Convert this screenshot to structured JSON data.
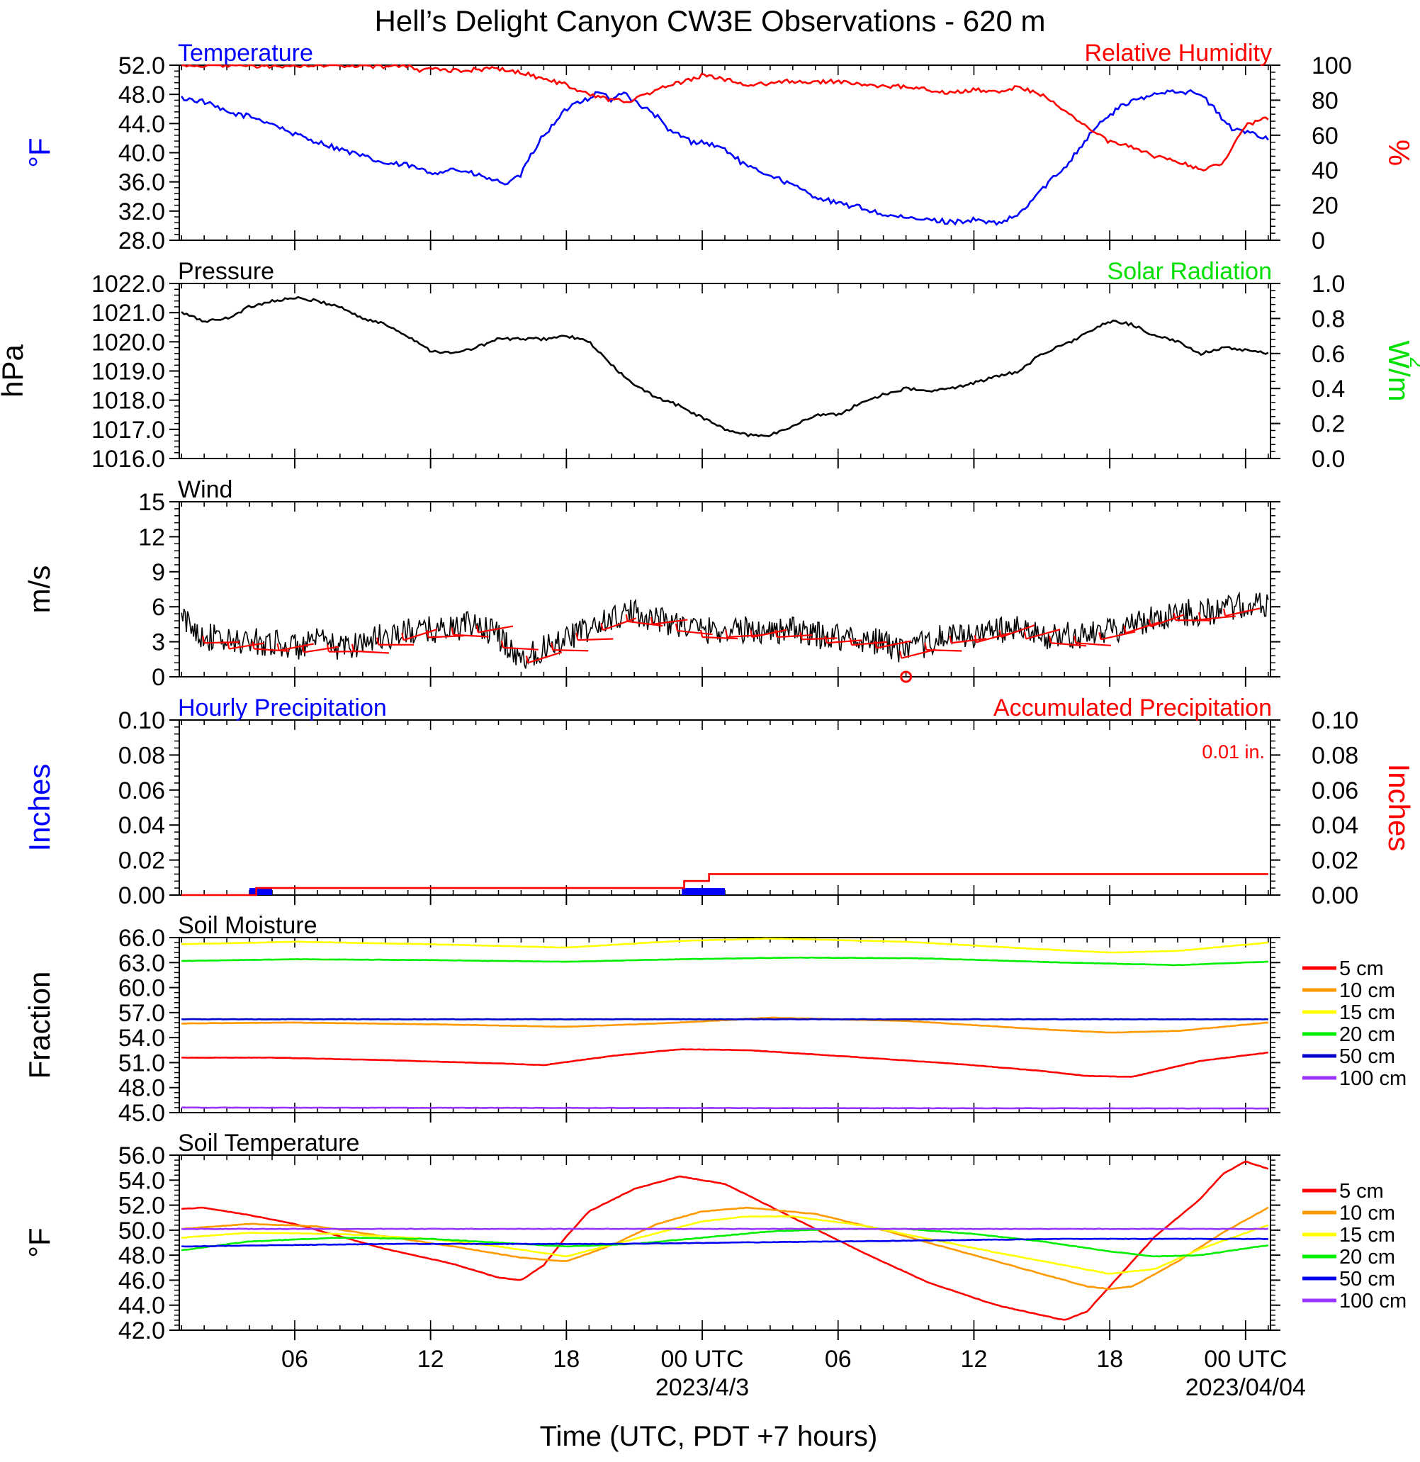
{
  "figure": {
    "title": "Hell’s Delight Canyon CW3E Observations - 620 m",
    "xlabel": "Time (UTC, PDT +7 hours)",
    "x_ticks": [
      "06",
      "12",
      "18",
      "00 UTC",
      "06",
      "12",
      "18",
      "00 UTC"
    ],
    "x_tick_hours": [
      6,
      12,
      18,
      24,
      30,
      36,
      42,
      48
    ],
    "x_dates": [
      "2023/4/3",
      "2023/04/04"
    ],
    "x_date_hours": [
      24,
      48
    ],
    "xlim": [
      0.9,
      49.1
    ],
    "colors": {
      "blue": "#0000ff",
      "red": "#ff0000",
      "green": "#00e000",
      "black": "#000000",
      "orange": "#ff9900",
      "yellow": "#ffff00",
      "purple": "#9933ff"
    }
  },
  "chart_data": [
    {
      "id": "temp_rh",
      "type": "line",
      "title_left": "Temperature",
      "title_right": "Relative Humidity",
      "ylabel_left": "°F",
      "ylabel_right": "%",
      "ylim_left": [
        28,
        52
      ],
      "ylim_right": [
        0,
        100
      ],
      "yticks_left": [
        "28.0",
        "32.0",
        "36.0",
        "40.0",
        "44.0",
        "48.0",
        "52.0"
      ],
      "yticks_right": [
        "0",
        "20",
        "40",
        "60",
        "80",
        "100"
      ],
      "series": [
        {
          "axis": "left",
          "color": "#0000ff",
          "x": [
            1,
            2,
            3,
            4,
            5,
            6,
            7,
            8,
            9,
            10,
            11,
            12,
            13,
            14,
            15,
            15.5,
            16,
            16.5,
            17,
            17.5,
            18,
            18.5,
            19,
            19.5,
            20,
            20.5,
            21,
            22,
            22.5,
            23,
            23.5,
            24,
            25,
            26,
            27,
            28,
            29,
            30,
            31,
            32,
            33,
            34,
            35,
            36,
            37,
            38,
            39,
            40,
            40.5,
            41,
            41.5,
            42,
            42.5,
            43,
            43.5,
            44,
            44.5,
            45,
            45.5,
            46,
            46.5,
            47,
            47.5,
            48,
            49
          ],
          "y": [
            47.5,
            47,
            45.5,
            45,
            44,
            42.5,
            41.5,
            40.5,
            39.5,
            38.5,
            38.3,
            37.2,
            37.8,
            37,
            36,
            35.8,
            37,
            40,
            42.5,
            44,
            46,
            47,
            47.5,
            48.5,
            47,
            48.5,
            47,
            45,
            43,
            42.5,
            41.5,
            41.5,
            40.5,
            38,
            37,
            35.5,
            34,
            33,
            32.5,
            31.5,
            31,
            30.8,
            30.5,
            30.8,
            30.2,
            31.5,
            35,
            38,
            40,
            42,
            44,
            45,
            46.5,
            47,
            47.5,
            48,
            48.5,
            48.5,
            48.3,
            48,
            46.5,
            44.5,
            43,
            43,
            42
          ]
        },
        {
          "axis": "right",
          "color": "#ff0000",
          "x": [
            1,
            3,
            5,
            7,
            9,
            10,
            11,
            11.5,
            12,
            13,
            14,
            15,
            16,
            17,
            18,
            19,
            20,
            21,
            22,
            23,
            24,
            25,
            26,
            27,
            28,
            29,
            30,
            31,
            32,
            33,
            34,
            35,
            36,
            37,
            38,
            39,
            40,
            41,
            42,
            43,
            44,
            45,
            46,
            47,
            47.5,
            48,
            49
          ],
          "y": [
            100,
            100,
            99.5,
            100,
            100,
            99,
            100,
            96,
            98,
            97,
            97.5,
            98,
            96,
            92,
            89,
            83,
            80,
            80,
            86,
            90,
            94,
            92,
            88,
            90,
            91,
            90,
            91,
            89,
            87.5,
            88,
            86,
            84,
            86,
            85,
            87.5,
            83,
            74,
            65,
            56,
            53,
            48,
            45,
            40,
            44,
            55,
            66,
            70
          ]
        }
      ]
    },
    {
      "id": "pressure",
      "type": "line",
      "title_left": "Pressure",
      "title_right": "Solar Radiation",
      "ylabel_left": "hPa",
      "ylabel_right": "W/m",
      "ylabel_right_sup": "2",
      "ylim_left": [
        1016,
        1022
      ],
      "ylim_right": [
        0,
        1
      ],
      "yticks_left": [
        "1016.0",
        "1017.0",
        "1018.0",
        "1019.0",
        "1020.0",
        "1021.0",
        "1022.0"
      ],
      "yticks_right": [
        "0.0",
        "0.2",
        "0.4",
        "0.6",
        "0.8",
        "1.0"
      ],
      "series": [
        {
          "axis": "left",
          "color": "#000000",
          "x": [
            1,
            2,
            3,
            4,
            5,
            6,
            7,
            8,
            9,
            10,
            11,
            12,
            13,
            14,
            15,
            16,
            17,
            18,
            19,
            20,
            21,
            22,
            23,
            24,
            25,
            26,
            27,
            28,
            29,
            30,
            31,
            32,
            33,
            34,
            35,
            36,
            37,
            38,
            39,
            40,
            41,
            42,
            43,
            44,
            45,
            46,
            47,
            48,
            49
          ],
          "y": [
            1021,
            1020.7,
            1020.8,
            1021.2,
            1021.4,
            1021.5,
            1021.4,
            1021.2,
            1020.8,
            1020.6,
            1020.2,
            1019.7,
            1019.6,
            1019.8,
            1020.1,
            1020.1,
            1020.1,
            1020.2,
            1020,
            1019.2,
            1018.5,
            1018.1,
            1017.8,
            1017.4,
            1017,
            1016.8,
            1016.8,
            1017.1,
            1017.5,
            1017.5,
            1017.9,
            1018.2,
            1018.4,
            1018.3,
            1018.4,
            1018.6,
            1018.8,
            1019,
            1019.6,
            1019.9,
            1020.3,
            1020.7,
            1020.6,
            1020.2,
            1020,
            1019.6,
            1019.8,
            1019.7,
            1019.6
          ]
        }
      ]
    },
    {
      "id": "wind",
      "type": "line",
      "title_left": "Wind",
      "ylabel_left": "m/s",
      "ylim_left": [
        0,
        15
      ],
      "yticks_left": [
        "0",
        "3",
        "6",
        "9",
        "12",
        "15"
      ],
      "series": [
        {
          "axis": "left",
          "color": "#000000",
          "noise": 1.2,
          "x": [
            1,
            2,
            3,
            4,
            5,
            6,
            7,
            8,
            9,
            10,
            11,
            12,
            13,
            14,
            15,
            16,
            17,
            18,
            19,
            20,
            21,
            22,
            23,
            24,
            25,
            26,
            27,
            28,
            29,
            30,
            31,
            32,
            33,
            34,
            35,
            36,
            37,
            38,
            39,
            40,
            41,
            42,
            43,
            44,
            45,
            46,
            47,
            48,
            49
          ],
          "y": [
            5,
            3.5,
            3,
            3,
            3,
            2.5,
            3,
            2.5,
            3,
            3.5,
            3.8,
            4,
            4.2,
            4.5,
            3.5,
            1.5,
            2.5,
            3.5,
            4,
            5,
            5.5,
            5,
            4.5,
            4,
            4,
            4,
            4,
            4,
            3.5,
            3.5,
            3.2,
            3,
            2,
            3,
            3.5,
            3.5,
            4,
            4,
            3.5,
            3.5,
            3.5,
            4,
            4.5,
            5,
            5.5,
            5.5,
            5.8,
            6,
            6
          ]
        }
      ],
      "calm_marker": {
        "x": 33,
        "y": 0
      }
    },
    {
      "id": "precip",
      "type": "bar",
      "title_left": "Hourly Precipitation",
      "title_right": "Accumulated Precipitation",
      "annotation": "0.01 in.",
      "ylabel_left": "Inches",
      "ylabel_right": "Inches",
      "ylim_left": [
        0,
        0.1
      ],
      "ylim_right": [
        0,
        0.1
      ],
      "yticks_left": [
        "0.00",
        "0.02",
        "0.04",
        "0.06",
        "0.08",
        "0.10"
      ],
      "yticks_right": [
        "0.00",
        "0.02",
        "0.04",
        "0.06",
        "0.08",
        "0.10"
      ],
      "bars": [
        {
          "x0": 4,
          "x1": 5,
          "value": 0.004
        },
        {
          "x0": 23.1,
          "x1": 25,
          "value": 0.004
        }
      ],
      "series": [
        {
          "axis": "right",
          "color": "#ff0000",
          "step": true,
          "x": [
            1,
            4.1,
            4.3,
            23.2,
            24.3,
            49
          ],
          "y": [
            0,
            0,
            0.004,
            0.008,
            0.012,
            0.012
          ]
        }
      ]
    },
    {
      "id": "soil_moisture",
      "type": "line",
      "title_left": "Soil Moisture",
      "ylabel_left": "Fraction",
      "ylim_left": [
        45,
        66
      ],
      "yticks_left": [
        "45.0",
        "48.0",
        "51.0",
        "54.0",
        "57.0",
        "60.0",
        "63.0",
        "66.0"
      ],
      "legend": [
        "5 cm",
        "10 cm",
        "15 cm",
        "20 cm",
        "50 cm",
        "100 cm"
      ],
      "series": [
        {
          "name": "5 cm",
          "color": "#ff0000",
          "x": [
            1,
            5,
            10,
            15,
            17,
            20,
            23,
            26,
            30,
            35,
            39,
            41,
            43,
            46,
            49
          ],
          "y": [
            51.6,
            51.6,
            51.3,
            50.9,
            50.7,
            51.8,
            52.6,
            52.5,
            51.8,
            50.9,
            50,
            49.4,
            49.3,
            51.2,
            52.2
          ]
        },
        {
          "name": "10 cm",
          "color": "#ff9900",
          "x": [
            1,
            6,
            12,
            18,
            23,
            27,
            33,
            39,
            42,
            45,
            49
          ],
          "y": [
            55.7,
            55.8,
            55.6,
            55.3,
            55.8,
            56.4,
            56,
            55,
            54.6,
            54.8,
            55.8
          ]
        },
        {
          "name": "15 cm",
          "color": "#ffff00",
          "x": [
            1,
            6,
            12,
            18,
            23,
            27,
            33,
            39,
            42,
            45,
            49
          ],
          "y": [
            65.2,
            65.5,
            65.2,
            64.8,
            65.6,
            65.9,
            65.5,
            64.6,
            64.2,
            64.4,
            65.4
          ]
        },
        {
          "name": "20 cm",
          "color": "#00ee00",
          "x": [
            1,
            6,
            12,
            18,
            23,
            28,
            34,
            40,
            45,
            49
          ],
          "y": [
            63.2,
            63.4,
            63.3,
            63.1,
            63.4,
            63.6,
            63.5,
            63,
            62.7,
            63.1
          ]
        },
        {
          "name": "50 cm",
          "color": "#0000cc",
          "x": [
            1,
            49
          ],
          "y": [
            56.2,
            56.2
          ]
        },
        {
          "name": "100 cm",
          "color": "#9933ff",
          "x": [
            1,
            49
          ],
          "y": [
            45.6,
            45.5
          ]
        }
      ]
    },
    {
      "id": "soil_temp",
      "type": "line",
      "title_left": "Soil Temperature",
      "ylabel_left": "°F",
      "ylim_left": [
        42,
        56
      ],
      "yticks_left": [
        "42.0",
        "44.0",
        "46.0",
        "48.0",
        "50.0",
        "52.0",
        "54.0",
        "56.0"
      ],
      "legend": [
        "5 cm",
        "10 cm",
        "15 cm",
        "20 cm",
        "50 cm",
        "100 cm"
      ],
      "series": [
        {
          "name": "5 cm",
          "color": "#ff0000",
          "x": [
            1,
            2,
            4,
            6,
            8,
            10,
            13,
            15,
            16,
            17,
            18,
            19,
            21,
            23,
            25,
            28,
            31,
            34,
            37,
            40,
            41,
            42,
            44,
            46,
            47,
            48,
            49
          ],
          "y": [
            51.7,
            51.8,
            51.2,
            50.5,
            49.5,
            48.5,
            47.3,
            46.2,
            46,
            47.2,
            49.5,
            51.5,
            53.3,
            54.3,
            53.7,
            51,
            48.3,
            45.8,
            44,
            42.8,
            43.5,
            45.5,
            49.5,
            52.5,
            54.5,
            55.5,
            54.9
          ]
        },
        {
          "name": "10 cm",
          "color": "#ff9900",
          "x": [
            1,
            4,
            7,
            10,
            13,
            16,
            18,
            20,
            22,
            24,
            26,
            29,
            32,
            35,
            38,
            41,
            42,
            43,
            45,
            47,
            49
          ],
          "y": [
            50.1,
            50.5,
            50.3,
            49.5,
            48.7,
            47.8,
            47.5,
            48.8,
            50.5,
            51.5,
            51.8,
            51.3,
            50,
            48.5,
            47,
            45.5,
            45.3,
            45.5,
            47.5,
            49.8,
            51.8
          ]
        },
        {
          "name": "15 cm",
          "color": "#ffff00",
          "x": [
            1,
            4,
            8,
            12,
            15,
            18,
            21,
            24,
            26,
            28,
            31,
            34,
            37,
            40,
            42,
            44,
            46,
            49
          ],
          "y": [
            49.4,
            49.8,
            49.7,
            49.3,
            48.7,
            47.9,
            49.3,
            50.7,
            51.1,
            51.1,
            50.4,
            49.3,
            48.2,
            47.2,
            46.5,
            46.9,
            48.5,
            50.4
          ]
        },
        {
          "name": "20 cm",
          "color": "#00ee00",
          "x": [
            1,
            4,
            8,
            12,
            15,
            18,
            21,
            24,
            27,
            30,
            33,
            36,
            39,
            42,
            44,
            46,
            49
          ],
          "y": [
            48.4,
            49.1,
            49.4,
            49.3,
            49,
            48.7,
            48.9,
            49.4,
            49.9,
            50.1,
            50.1,
            49.7,
            49.1,
            48.3,
            47.9,
            48,
            48.8
          ]
        },
        {
          "name": "50 cm",
          "color": "#0000ee",
          "x": [
            1,
            10,
            20,
            30,
            40,
            49
          ],
          "y": [
            48.7,
            48.9,
            48.9,
            49.1,
            49.3,
            49.3
          ]
        },
        {
          "name": "100 cm",
          "color": "#9933ff",
          "x": [
            1,
            49
          ],
          "y": [
            50.1,
            50.1
          ]
        }
      ]
    }
  ]
}
